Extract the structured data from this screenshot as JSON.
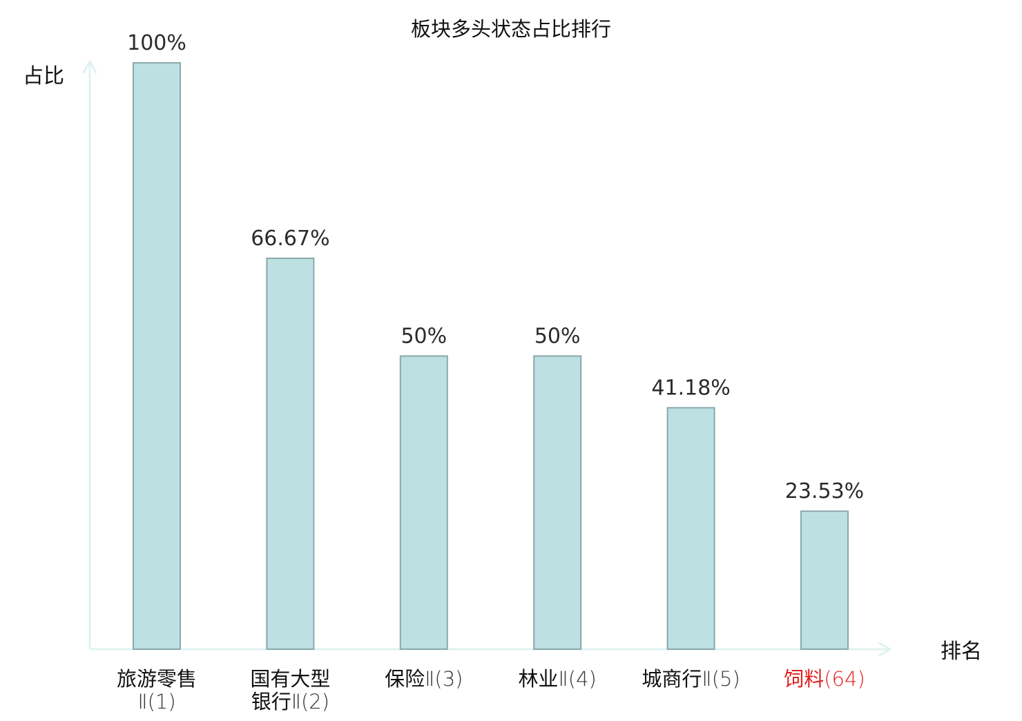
{
  "chart_data": {
    "type": "bar",
    "title": "板块多头状态占比排行",
    "ylabel": "占比",
    "xlabel": "排名",
    "ylim": [
      0,
      100
    ],
    "grid": false,
    "categories": [
      {
        "lines": [
          [
            {
              "t": "旅游零售",
              "k": "cn"
            }
          ],
          [
            {
              "t": "Ⅱ(1)",
              "k": "lat"
            }
          ]
        ],
        "highlight": false
      },
      {
        "lines": [
          [
            {
              "t": "国有大型",
              "k": "cn"
            }
          ],
          [
            {
              "t": "银行",
              "k": "cn"
            },
            {
              "t": "Ⅱ(2)",
              "k": "lat"
            }
          ]
        ],
        "highlight": false
      },
      {
        "lines": [
          [
            {
              "t": "保险",
              "k": "cn"
            },
            {
              "t": "Ⅱ(3)",
              "k": "lat"
            }
          ]
        ],
        "highlight": false
      },
      {
        "lines": [
          [
            {
              "t": "林业",
              "k": "cn"
            },
            {
              "t": "Ⅱ(4)",
              "k": "lat"
            }
          ]
        ],
        "highlight": false
      },
      {
        "lines": [
          [
            {
              "t": "城商行",
              "k": "cn"
            },
            {
              "t": "Ⅱ(5)",
              "k": "lat"
            }
          ]
        ],
        "highlight": false
      },
      {
        "lines": [
          [
            {
              "t": "饲料",
              "k": "cn"
            },
            {
              "t": "(64)",
              "k": "lat"
            }
          ]
        ],
        "highlight": true
      }
    ],
    "values": [
      100,
      66.67,
      50,
      50,
      41.18,
      23.53
    ],
    "value_labels": [
      "100%",
      "66.67%",
      "50%",
      "50%",
      "41.18%",
      "23.53%"
    ],
    "colors": {
      "bar_fill": "#bde0e2",
      "bar_stroke": "#8aa8ab",
      "axis": "#e0f2f0",
      "text": "#2b2b2b",
      "label_text": "#111111",
      "highlight": "#e01e1e"
    }
  }
}
